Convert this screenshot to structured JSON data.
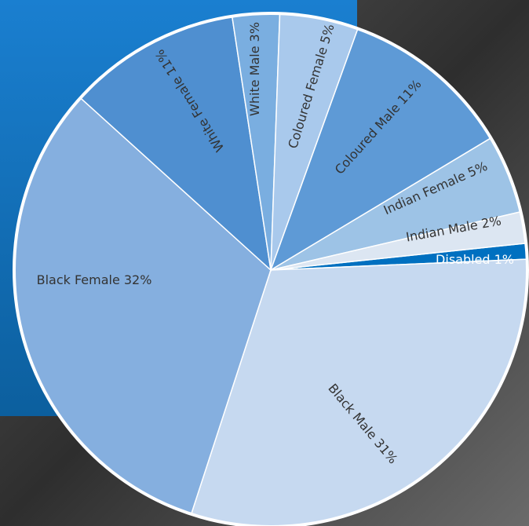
{
  "chart_data": {
    "type": "pie",
    "categories": [
      "Disabled",
      "Black Male",
      "Black Female",
      "White Female",
      "White Male",
      "Coloured Female",
      "Coloured Male",
      "Indian Female",
      "Indian Male"
    ],
    "values": [
      1,
      31,
      32,
      11,
      3,
      5,
      11,
      5,
      2
    ],
    "value_labels": [
      "1%",
      "31%",
      "32%",
      "11%",
      "3%",
      "5%",
      "11%",
      "5%",
      "2%"
    ],
    "colors": [
      "#0070c0",
      "#c6d9f0",
      "#85afdf",
      "#4f8fd0",
      "#7aaee0",
      "#a9c9ec",
      "#5e9ad6",
      "#9dc3e6",
      "#dce6f2"
    ]
  }
}
